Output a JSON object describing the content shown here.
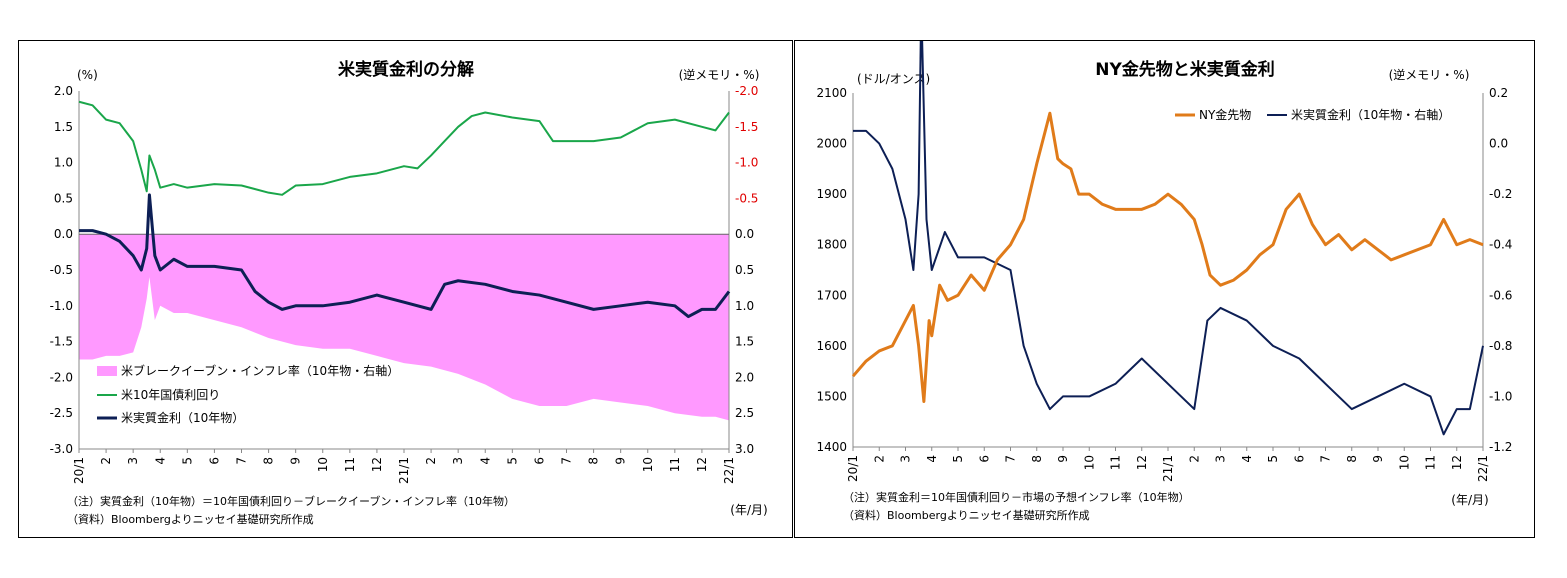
{
  "colors": {
    "pink": "#ff99ff",
    "green": "#1aa64a",
    "navy": "#0d1f55",
    "orange": "#e07b1a",
    "red_axis": "#e00000"
  },
  "chart_data": [
    {
      "type": "line",
      "title": "米実質金利の分解",
      "y_left_unit": "(%)",
      "y_right_unit": "(逆メモリ・%)",
      "x_unit": "(年/月)",
      "x_tick_labels": [
        "20/1",
        "2",
        "3",
        "4",
        "5",
        "6",
        "7",
        "8",
        "9",
        "10",
        "11",
        "12",
        "21/1",
        "2",
        "3",
        "4",
        "5",
        "6",
        "7",
        "8",
        "9",
        "10",
        "11",
        "12",
        "22/1"
      ],
      "y_left_ticks": [
        "2.0",
        "1.5",
        "1.0",
        "0.5",
        "0.0",
        "-0.5",
        "-1.0",
        "-1.5",
        "-2.0",
        "-2.5",
        "-3.0"
      ],
      "y_right_ticks": [
        "-2.0",
        "-1.5",
        "-1.0",
        "-0.5",
        "0.0",
        "0.5",
        "1.0",
        "1.5",
        "2.0",
        "2.5",
        "3.0"
      ],
      "y_left_range": [
        -3.0,
        2.0
      ],
      "y_right_range_inverted": [
        -2.0,
        3.0
      ],
      "legend": [
        "米ブレークイーブン・インフレ率（10年物・右軸）",
        "米10年国債利回り",
        "米実質金利（10年物）"
      ],
      "series": [
        {
          "name": "米ブレークイーブン・インフレ率（10年物・右軸）",
          "kind": "area",
          "axis": "right",
          "x": [
            0,
            0.5,
            1,
            1.5,
            2,
            2.3,
            2.5,
            2.6,
            2.8,
            3,
            3.5,
            4,
            5,
            6,
            7,
            8,
            9,
            10,
            11,
            12,
            13,
            14,
            15,
            16,
            17,
            18,
            19,
            20,
            21,
            22,
            23,
            23.5,
            24
          ],
          "values": [
            1.75,
            1.75,
            1.7,
            1.7,
            1.65,
            1.3,
            0.9,
            0.6,
            1.2,
            1.0,
            1.1,
            1.1,
            1.2,
            1.3,
            1.45,
            1.55,
            1.6,
            1.6,
            1.7,
            1.8,
            1.85,
            1.95,
            2.1,
            2.3,
            2.4,
            2.4,
            2.3,
            2.35,
            2.4,
            2.5,
            2.55,
            2.55,
            2.6
          ]
        },
        {
          "name": "米10年国債利回り",
          "kind": "line",
          "axis": "left",
          "x": [
            0,
            0.5,
            1,
            1.5,
            2,
            2.3,
            2.5,
            2.6,
            2.8,
            3,
            3.5,
            4,
            5,
            6,
            7,
            7.5,
            8,
            9,
            10,
            11,
            12,
            12.5,
            13,
            13.5,
            14,
            14.5,
            15,
            16,
            17,
            17.5,
            18,
            19,
            20,
            21,
            22,
            23,
            23.5,
            24
          ],
          "values": [
            1.85,
            1.8,
            1.6,
            1.55,
            1.3,
            0.9,
            0.6,
            1.1,
            0.9,
            0.65,
            0.7,
            0.65,
            0.7,
            0.68,
            0.58,
            0.55,
            0.68,
            0.7,
            0.8,
            0.85,
            0.95,
            0.92,
            1.1,
            1.3,
            1.5,
            1.65,
            1.7,
            1.63,
            1.58,
            1.3,
            1.3,
            1.3,
            1.35,
            1.55,
            1.6,
            1.5,
            1.45,
            1.7
          ]
        },
        {
          "name": "米実質金利（10年物）",
          "kind": "line",
          "axis": "left",
          "x": [
            0,
            0.5,
            1,
            1.5,
            2,
            2.3,
            2.5,
            2.6,
            2.8,
            3,
            3.5,
            4,
            5,
            6,
            6.5,
            7,
            7.5,
            8,
            9,
            10,
            11,
            12,
            13,
            13.5,
            14,
            15,
            16,
            17,
            18,
            19,
            20,
            21,
            22,
            22.5,
            23,
            23.5,
            24
          ],
          "values": [
            0.05,
            0.05,
            0.0,
            -0.1,
            -0.3,
            -0.5,
            -0.2,
            0.55,
            -0.3,
            -0.5,
            -0.35,
            -0.45,
            -0.45,
            -0.5,
            -0.8,
            -0.95,
            -1.05,
            -1.0,
            -1.0,
            -0.95,
            -0.85,
            -0.95,
            -1.05,
            -0.7,
            -0.65,
            -0.7,
            -0.8,
            -0.85,
            -0.95,
            -1.05,
            -1.0,
            -0.95,
            -1.0,
            -1.15,
            -1.05,
            -1.05,
            -0.8
          ]
        }
      ],
      "notes": [
        "（注）実質金利（10年物）＝10年国債利回り－ブレークイーブン・インフレ率（10年物）",
        "（資料）Bloombergよりニッセイ基礎研究所作成"
      ]
    },
    {
      "type": "line",
      "title": "NY金先物と米実質金利",
      "y_left_unit": "(ドル/オンス)",
      "y_right_unit": "(逆メモリ・%)",
      "x_unit": "(年/月)",
      "x_tick_labels": [
        "20/1",
        "2",
        "3",
        "4",
        "5",
        "6",
        "7",
        "8",
        "9",
        "10",
        "11",
        "12",
        "21/1",
        "2",
        "3",
        "4",
        "5",
        "6",
        "7",
        "8",
        "9",
        "10",
        "11",
        "12",
        "22/1"
      ],
      "y_left_ticks": [
        "2100",
        "2000",
        "1900",
        "1800",
        "1700",
        "1600",
        "1500",
        "1400"
      ],
      "y_right_ticks": [
        "0.2",
        "0.0",
        "-0.2",
        "-0.4",
        "-0.6",
        "-0.8",
        "-1.0",
        "-1.2"
      ],
      "y_left_range": [
        1400,
        2100
      ],
      "y_right_range": [
        -1.2,
        0.2
      ],
      "legend": [
        "NY金先物",
        "米実質金利（10年物・右軸）"
      ],
      "series": [
        {
          "name": "NY金先物",
          "kind": "line",
          "axis": "left",
          "x": [
            0,
            0.5,
            1,
            1.5,
            2,
            2.3,
            2.5,
            2.7,
            2.9,
            3,
            3.3,
            3.6,
            4,
            4.5,
            5,
            5.5,
            6,
            6.5,
            7,
            7.5,
            7.8,
            8,
            8.3,
            8.6,
            9,
            9.5,
            10,
            11,
            11.5,
            12,
            12.5,
            13,
            13.3,
            13.6,
            14,
            14.5,
            15,
            15.5,
            16,
            16.5,
            17,
            17.5,
            18,
            18.5,
            19,
            19.5,
            20,
            20.5,
            21,
            22,
            22.5,
            23,
            23.5,
            24
          ],
          "values": [
            1540,
            1570,
            1590,
            1600,
            1650,
            1680,
            1600,
            1490,
            1650,
            1620,
            1720,
            1690,
            1700,
            1740,
            1710,
            1770,
            1800,
            1850,
            1960,
            2060,
            1970,
            1960,
            1950,
            1900,
            1900,
            1880,
            1870,
            1870,
            1880,
            1900,
            1880,
            1850,
            1800,
            1740,
            1720,
            1730,
            1750,
            1780,
            1800,
            1870,
            1900,
            1840,
            1800,
            1820,
            1790,
            1810,
            1790,
            1770,
            1780,
            1800,
            1850,
            1800,
            1810,
            1800
          ]
        },
        {
          "name": "米実質金利（10年物・右軸）",
          "kind": "line",
          "axis": "right",
          "x": [
            0,
            0.5,
            1,
            1.5,
            2,
            2.3,
            2.5,
            2.6,
            2.8,
            3,
            3.5,
            4,
            5,
            6,
            6.5,
            7,
            7.5,
            8,
            9,
            10,
            11,
            12,
            13,
            13.5,
            14,
            15,
            16,
            17,
            18,
            19,
            20,
            21,
            22,
            22.5,
            23,
            23.5,
            24
          ],
          "values": [
            0.05,
            0.05,
            0.0,
            -0.1,
            -0.3,
            -0.5,
            -0.2,
            0.55,
            -0.3,
            -0.5,
            -0.35,
            -0.45,
            -0.45,
            -0.5,
            -0.8,
            -0.95,
            -1.05,
            -1.0,
            -1.0,
            -0.95,
            -0.85,
            -0.95,
            -1.05,
            -0.7,
            -0.65,
            -0.7,
            -0.8,
            -0.85,
            -0.95,
            -1.05,
            -1.0,
            -0.95,
            -1.0,
            -1.15,
            -1.05,
            -1.05,
            -0.8
          ]
        }
      ],
      "notes": [
        "（注）実質金利＝10年国債利回り－市場の予想インフレ率（10年物）",
        "（資料）Bloombergよりニッセイ基礎研究所作成"
      ]
    }
  ]
}
